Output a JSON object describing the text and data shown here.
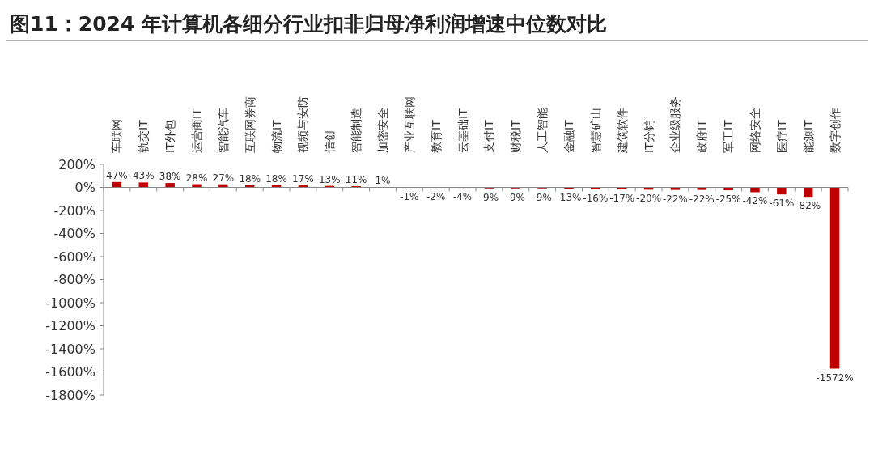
{
  "chart_data": {
    "type": "bar",
    "title": "图11：2024 年计算机各细分行业扣非归母净利润增速中位数对比",
    "categories": [
      "车联网",
      "轨交IT",
      "IT外包",
      "运营商IT",
      "智能汽车",
      "互联网券商",
      "物流IT",
      "视频与安防",
      "信创",
      "智能制造",
      "加密安全",
      "产业互联网",
      "教育IT",
      "云基础IT",
      "支付IT",
      "财税IT",
      "人工智能",
      "金融IT",
      "智慧矿山",
      "建筑软件",
      "IT分销",
      "企业级服务",
      "政府IT",
      "军工IT",
      "网络安全",
      "医疗IT",
      "能源IT",
      "数字创作"
    ],
    "values": [
      47,
      43,
      38,
      28,
      27,
      18,
      18,
      17,
      13,
      11,
      1,
      -1,
      -2,
      -4,
      -9,
      -9,
      -9,
      -13,
      -16,
      -17,
      -20,
      -22,
      -22,
      -25,
      -42,
      -61,
      -82,
      -1572
    ],
    "value_labels": [
      "47%",
      "43%",
      "38%",
      "28%",
      "27%",
      "18%",
      "18%",
      "17%",
      "13%",
      "11%",
      "1%",
      "-1%",
      "-2%",
      "-4%",
      "-9%",
      "-9%",
      "-9%",
      "-13%",
      "-16%",
      "-17%",
      "-20%",
      "-22%",
      "-22%",
      "-25%",
      "-42%",
      "-61%",
      "-82%",
      "-1572%"
    ],
    "color": "#c00000",
    "ylim": [
      -1800,
      200
    ],
    "yticks": [
      {
        "value": -1800,
        "label": "-1800%"
      },
      {
        "value": -1600,
        "label": "-1600%"
      },
      {
        "value": -1400,
        "label": "-1400%"
      },
      {
        "value": -1200,
        "label": "-1200%"
      },
      {
        "value": -1000,
        "label": "-1000%"
      },
      {
        "value": -800,
        "label": "-800%"
      },
      {
        "value": -600,
        "label": "-600%"
      },
      {
        "value": -400,
        "label": "-400%"
      },
      {
        "value": -200,
        "label": "-200%"
      },
      {
        "value": 0,
        "label": "0%"
      },
      {
        "value": 200,
        "label": "200%"
      }
    ]
  }
}
